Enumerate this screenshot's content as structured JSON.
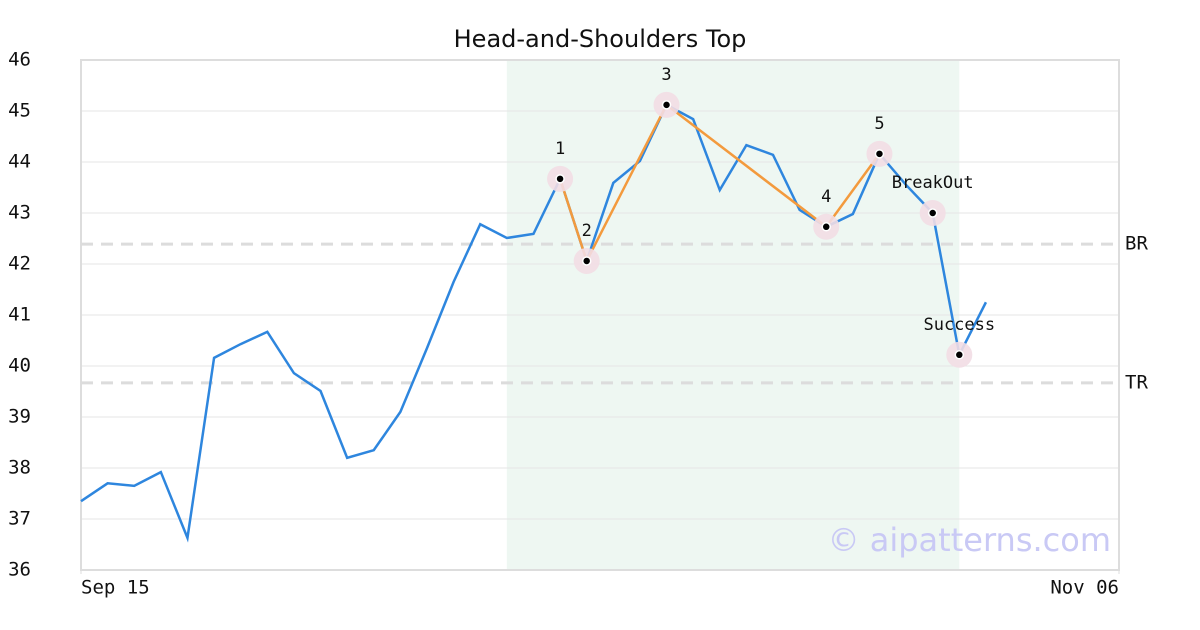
{
  "chart_data": {
    "type": "line",
    "title": "Head-and-Shoulders Top",
    "x": [
      0,
      1,
      2,
      3,
      4,
      5,
      6,
      7,
      8,
      9,
      10,
      11,
      12,
      13,
      14,
      15,
      16,
      17,
      18,
      19,
      20,
      21,
      22,
      23,
      24,
      25,
      26,
      27,
      28,
      29,
      30,
      31,
      32,
      33,
      34
    ],
    "values": [
      37.35,
      37.7,
      37.65,
      37.92,
      36.63,
      40.16,
      40.43,
      40.67,
      39.86,
      39.51,
      38.2,
      38.35,
      39.1,
      40.35,
      41.65,
      42.78,
      42.51,
      42.59,
      43.67,
      42.06,
      43.59,
      44.02,
      45.12,
      44.84,
      43.45,
      44.33,
      44.14,
      43.06,
      42.73,
      42.98,
      44.16,
      43.55,
      43.0,
      40.22,
      41.25
    ],
    "color": "#2e86de",
    "xlim": [
      0,
      39
    ],
    "xticks": [
      {
        "value": 0,
        "label": "Sep 15"
      },
      {
        "value": 39,
        "label": "Nov 06"
      }
    ],
    "ylim": [
      36,
      46
    ],
    "yticks": [
      36,
      37,
      38,
      39,
      40,
      41,
      42,
      43,
      44,
      45,
      46
    ],
    "grid": true,
    "shade_x": [
      16,
      33
    ],
    "shade_color": "#eef7f2",
    "pattern": {
      "x": [
        18,
        19,
        22,
        28,
        30
      ],
      "values": [
        43.67,
        42.06,
        45.12,
        42.73,
        44.16
      ],
      "labels": [
        "1",
        "2",
        "3",
        "4",
        "5"
      ],
      "color": "#f39a3d"
    },
    "signals": {
      "x": [
        32,
        33
      ],
      "values": [
        43.0,
        40.22
      ],
      "labels": [
        "BreakOut",
        "Success"
      ]
    },
    "hlines": [
      {
        "value": 42.39,
        "label": "BR"
      },
      {
        "value": 39.67,
        "label": "TR"
      }
    ],
    "watermark": "© aipatterns.com"
  }
}
